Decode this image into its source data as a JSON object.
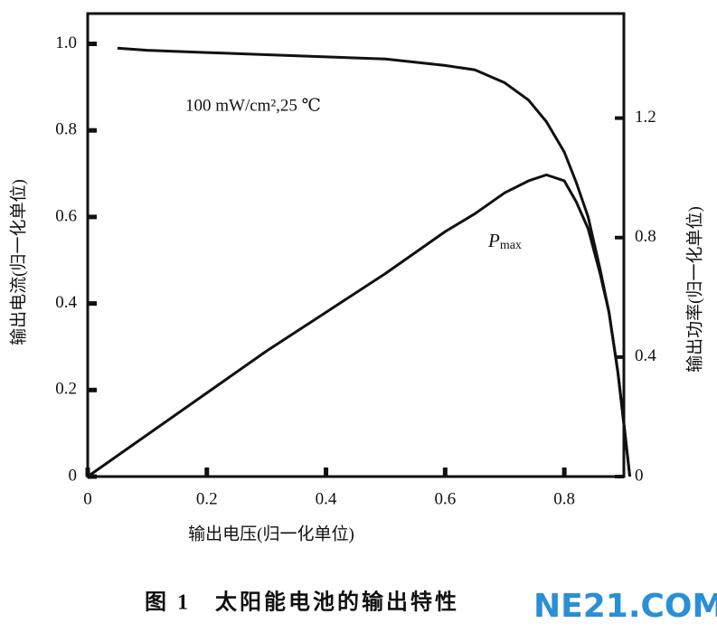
{
  "chart_data": {
    "type": "line",
    "title": "图 1　太阳能电池的输出特性",
    "xlabel": "输出电压(归一化单位)",
    "ylabel": "输出电流(归一化单位)",
    "y2label": "输出功率(归一化单位)",
    "annotation": "100 mW/cm²,25 ℃",
    "pmax_label": {
      "base": "P",
      "sub": "max"
    },
    "watermark": "NE21.COM",
    "x": [
      0,
      0.05,
      0.1,
      0.2,
      0.3,
      0.4,
      0.5,
      0.6,
      0.65,
      0.7,
      0.74,
      0.77,
      0.8,
      0.82,
      0.84,
      0.86,
      0.875,
      0.89,
      0.9,
      0.91
    ],
    "series": [
      {
        "name": "I",
        "color": "#111111",
        "values": [
          null,
          0.99,
          0.985,
          0.98,
          0.975,
          0.97,
          0.965,
          0.95,
          0.94,
          0.91,
          0.87,
          0.82,
          0.75,
          0.68,
          0.6,
          0.48,
          0.38,
          0.24,
          0.12,
          0
        ]
      },
      {
        "name": "P",
        "color": "#111111",
        "axis": "y2",
        "values": [
          0,
          0.07,
          0.14,
          0.28,
          0.42,
          0.55,
          0.68,
          0.82,
          0.88,
          0.95,
          0.99,
          1.01,
          0.99,
          0.92,
          0.83,
          0.68,
          0.55,
          0.35,
          0.18,
          0
        ]
      }
    ],
    "xlim": [
      0,
      0.9
    ],
    "xticks": [
      0,
      0.2,
      0.4,
      0.6,
      0.8
    ],
    "ylim": [
      0,
      1.07
    ],
    "yticks": [
      0,
      0.2,
      0.4,
      0.6,
      0.8,
      {
        "value": 1.0,
        "label": "1.0"
      }
    ],
    "y2lim": [
      0,
      1.55
    ],
    "y2ticks": [
      0,
      0.4,
      0.8,
      1.2
    ]
  }
}
